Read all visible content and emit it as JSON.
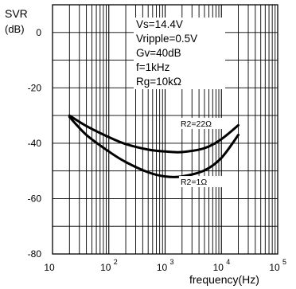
{
  "chart_data": {
    "type": "line",
    "ylabel": "SVR",
    "yunit": "(dB)",
    "xlabel": "frequency(Hz)",
    "x_scale": "log",
    "xlim": [
      10,
      100000
    ],
    "ylim": [
      -80,
      10
    ],
    "x_ticks": [
      {
        "value": 10,
        "label": "10",
        "exp": ""
      },
      {
        "value": 100,
        "label": "10",
        "exp": "2"
      },
      {
        "value": 1000,
        "label": "10",
        "exp": "3"
      },
      {
        "value": 10000,
        "label": "10",
        "exp": "4"
      },
      {
        "value": 100000,
        "label": "10",
        "exp": "5"
      }
    ],
    "y_ticks": [
      {
        "value": 0,
        "label": "0"
      },
      {
        "value": -20,
        "label": "-20"
      },
      {
        "value": -40,
        "label": "-40"
      },
      {
        "value": -60,
        "label": "-60"
      },
      {
        "value": -80,
        "label": "-80"
      }
    ],
    "grid": true,
    "conditions": [
      "Vs=14.4V",
      "Vripple=0.5V",
      "Gv=40dB",
      "f=1kHz",
      "Rg=10kΩ"
    ],
    "series": [
      {
        "name": "R2=22Ω",
        "x": [
          20,
          40,
          100,
          200,
          500,
          1000,
          2000,
          5000,
          10000,
          20000
        ],
        "y": [
          -30,
          -33.8,
          -37.8,
          -40.3,
          -42.3,
          -43,
          -43.2,
          -41.8,
          -38.5,
          -33.5
        ]
      },
      {
        "name": "R2=1Ω",
        "x": [
          20,
          40,
          100,
          200,
          500,
          1000,
          2000,
          5000,
          10000,
          20000
        ],
        "y": [
          -30.5,
          -37,
          -43,
          -46.8,
          -50.5,
          -52,
          -52,
          -49.8,
          -45.3,
          -37
        ]
      }
    ]
  }
}
